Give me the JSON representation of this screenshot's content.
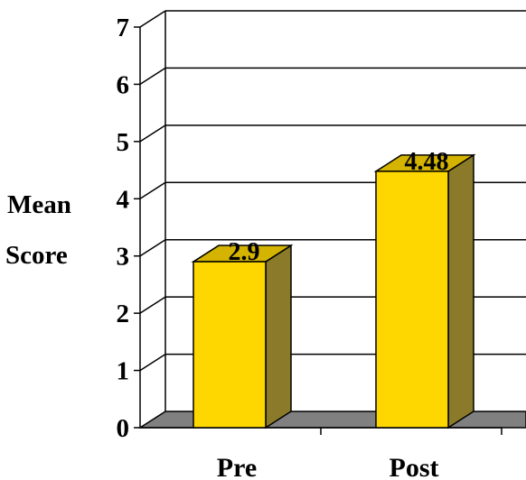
{
  "chart_data": {
    "type": "bar",
    "categories": [
      "Pre",
      "Post"
    ],
    "values": [
      2.9,
      4.48
    ],
    "data_labels": [
      "2.9",
      "4.48"
    ],
    "ylabel_lines": [
      "Mean",
      "Score"
    ],
    "ylim": [
      0,
      7
    ],
    "yticks": [
      "0",
      "1",
      "2",
      "3",
      "4",
      "5",
      "6",
      "7"
    ],
    "grid": true,
    "three_d": true,
    "colors": {
      "bar_front": "#FFD700",
      "bar_top": "#D4B400",
      "bar_side": "#8A7A2A",
      "floor": "#808080",
      "grid": "#000000"
    }
  }
}
